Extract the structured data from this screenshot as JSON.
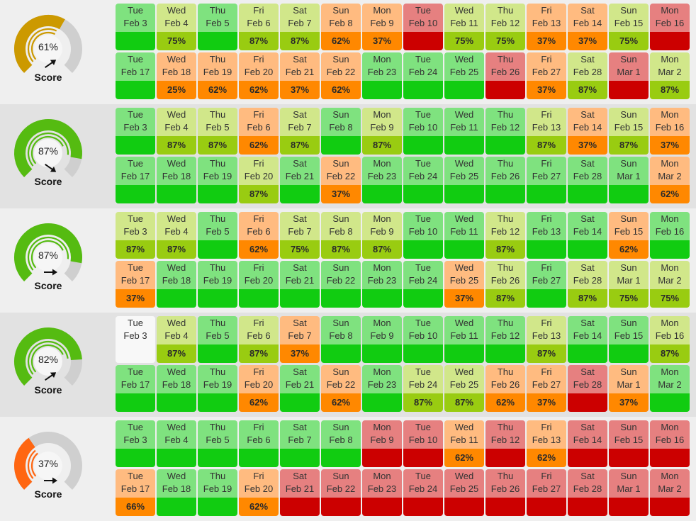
{
  "colors": {
    "green": {
      "top": "#7fe27f",
      "bot": "#11cc11"
    },
    "lime": {
      "top": "#d1e78a",
      "bot": "#99cc11"
    },
    "orange": {
      "top": "#ffbb80",
      "bot": "#ff8800"
    },
    "red": {
      "top": "#e68080",
      "bot": "#cc0000"
    },
    "white": {
      "top": "#f8f8f8",
      "bot": "#f8f8f8"
    },
    "gauge_track": "#cfcfcf",
    "gauge_gold": "#cc9900",
    "gauge_green": "#55bb11",
    "gauge_orange": "#ff6611"
  },
  "rows": [
    {
      "gauge": {
        "percent": "61%",
        "value": 61,
        "color": "gauge_gold",
        "arrow": "up-right-arrow-icon",
        "label": "Score"
      },
      "days": [
        {
          "dow": "Tue",
          "date": "Feb 3",
          "pct": "",
          "color": "green"
        },
        {
          "dow": "Wed",
          "date": "Feb 4",
          "pct": "75%",
          "color": "lime"
        },
        {
          "dow": "Thu",
          "date": "Feb 5",
          "pct": "",
          "color": "green"
        },
        {
          "dow": "Fri",
          "date": "Feb 6",
          "pct": "87%",
          "color": "lime"
        },
        {
          "dow": "Sat",
          "date": "Feb 7",
          "pct": "87%",
          "color": "lime"
        },
        {
          "dow": "Sun",
          "date": "Feb 8",
          "pct": "62%",
          "color": "orange"
        },
        {
          "dow": "Mon",
          "date": "Feb 9",
          "pct": "37%",
          "color": "orange"
        },
        {
          "dow": "Tue",
          "date": "Feb 10",
          "pct": "",
          "color": "red"
        },
        {
          "dow": "Wed",
          "date": "Feb 11",
          "pct": "75%",
          "color": "lime"
        },
        {
          "dow": "Thu",
          "date": "Feb 12",
          "pct": "75%",
          "color": "lime"
        },
        {
          "dow": "Fri",
          "date": "Feb 13",
          "pct": "37%",
          "color": "orange"
        },
        {
          "dow": "Sat",
          "date": "Feb 14",
          "pct": "37%",
          "color": "orange"
        },
        {
          "dow": "Sun",
          "date": "Feb 15",
          "pct": "75%",
          "color": "lime"
        },
        {
          "dow": "Mon",
          "date": "Feb 16",
          "pct": "",
          "color": "red"
        },
        {
          "dow": "Tue",
          "date": "Feb 17",
          "pct": "",
          "color": "green"
        },
        {
          "dow": "Wed",
          "date": "Feb 18",
          "pct": "25%",
          "color": "orange"
        },
        {
          "dow": "Thu",
          "date": "Feb 19",
          "pct": "62%",
          "color": "orange"
        },
        {
          "dow": "Fri",
          "date": "Feb 20",
          "pct": "62%",
          "color": "orange"
        },
        {
          "dow": "Sat",
          "date": "Feb 21",
          "pct": "37%",
          "color": "orange"
        },
        {
          "dow": "Sun",
          "date": "Feb 22",
          "pct": "62%",
          "color": "orange"
        },
        {
          "dow": "Mon",
          "date": "Feb 23",
          "pct": "",
          "color": "green"
        },
        {
          "dow": "Tue",
          "date": "Feb 24",
          "pct": "",
          "color": "green"
        },
        {
          "dow": "Wed",
          "date": "Feb 25",
          "pct": "",
          "color": "green"
        },
        {
          "dow": "Thu",
          "date": "Feb 26",
          "pct": "",
          "color": "red"
        },
        {
          "dow": "Fri",
          "date": "Feb 27",
          "pct": "37%",
          "color": "orange"
        },
        {
          "dow": "Sat",
          "date": "Feb 28",
          "pct": "87%",
          "color": "lime"
        },
        {
          "dow": "Sun",
          "date": "Mar 1",
          "pct": "",
          "color": "red"
        },
        {
          "dow": "Mon",
          "date": "Mar 2",
          "pct": "87%",
          "color": "lime"
        }
      ]
    },
    {
      "gauge": {
        "percent": "87%",
        "value": 87,
        "color": "gauge_green",
        "arrow": "down-right-arrow-icon",
        "label": "Score"
      },
      "days": [
        {
          "dow": "Tue",
          "date": "Feb 3",
          "pct": "",
          "color": "green"
        },
        {
          "dow": "Wed",
          "date": "Feb 4",
          "pct": "87%",
          "color": "lime"
        },
        {
          "dow": "Thu",
          "date": "Feb 5",
          "pct": "87%",
          "color": "lime"
        },
        {
          "dow": "Fri",
          "date": "Feb 6",
          "pct": "62%",
          "color": "orange"
        },
        {
          "dow": "Sat",
          "date": "Feb 7",
          "pct": "87%",
          "color": "lime"
        },
        {
          "dow": "Sun",
          "date": "Feb 8",
          "pct": "",
          "color": "green"
        },
        {
          "dow": "Mon",
          "date": "Feb 9",
          "pct": "87%",
          "color": "lime"
        },
        {
          "dow": "Tue",
          "date": "Feb 10",
          "pct": "",
          "color": "green"
        },
        {
          "dow": "Wed",
          "date": "Feb 11",
          "pct": "",
          "color": "green"
        },
        {
          "dow": "Thu",
          "date": "Feb 12",
          "pct": "",
          "color": "green"
        },
        {
          "dow": "Fri",
          "date": "Feb 13",
          "pct": "87%",
          "color": "lime"
        },
        {
          "dow": "Sat",
          "date": "Feb 14",
          "pct": "37%",
          "color": "orange"
        },
        {
          "dow": "Sun",
          "date": "Feb 15",
          "pct": "87%",
          "color": "lime"
        },
        {
          "dow": "Mon",
          "date": "Feb 16",
          "pct": "37%",
          "color": "orange"
        },
        {
          "dow": "Tue",
          "date": "Feb 17",
          "pct": "",
          "color": "green"
        },
        {
          "dow": "Wed",
          "date": "Feb 18",
          "pct": "",
          "color": "green"
        },
        {
          "dow": "Thu",
          "date": "Feb 19",
          "pct": "",
          "color": "green"
        },
        {
          "dow": "Fri",
          "date": "Feb 20",
          "pct": "87%",
          "color": "lime"
        },
        {
          "dow": "Sat",
          "date": "Feb 21",
          "pct": "",
          "color": "green"
        },
        {
          "dow": "Sun",
          "date": "Feb 22",
          "pct": "37%",
          "color": "orange"
        },
        {
          "dow": "Mon",
          "date": "Feb 23",
          "pct": "",
          "color": "green"
        },
        {
          "dow": "Tue",
          "date": "Feb 24",
          "pct": "",
          "color": "green"
        },
        {
          "dow": "Wed",
          "date": "Feb 25",
          "pct": "",
          "color": "green"
        },
        {
          "dow": "Thu",
          "date": "Feb 26",
          "pct": "",
          "color": "green"
        },
        {
          "dow": "Fri",
          "date": "Feb 27",
          "pct": "",
          "color": "green"
        },
        {
          "dow": "Sat",
          "date": "Feb 28",
          "pct": "",
          "color": "green"
        },
        {
          "dow": "Sun",
          "date": "Mar 1",
          "pct": "",
          "color": "green"
        },
        {
          "dow": "Mon",
          "date": "Mar 2",
          "pct": "62%",
          "color": "orange"
        }
      ]
    },
    {
      "gauge": {
        "percent": "87%",
        "value": 87,
        "color": "gauge_green",
        "arrow": "right-arrow-icon",
        "label": "Score"
      },
      "days": [
        {
          "dow": "Tue",
          "date": "Feb 3",
          "pct": "87%",
          "color": "lime"
        },
        {
          "dow": "Wed",
          "date": "Feb 4",
          "pct": "87%",
          "color": "lime"
        },
        {
          "dow": "Thu",
          "date": "Feb 5",
          "pct": "",
          "color": "green"
        },
        {
          "dow": "Fri",
          "date": "Feb 6",
          "pct": "62%",
          "color": "orange"
        },
        {
          "dow": "Sat",
          "date": "Feb 7",
          "pct": "75%",
          "color": "lime"
        },
        {
          "dow": "Sun",
          "date": "Feb 8",
          "pct": "87%",
          "color": "lime"
        },
        {
          "dow": "Mon",
          "date": "Feb 9",
          "pct": "87%",
          "color": "lime"
        },
        {
          "dow": "Tue",
          "date": "Feb 10",
          "pct": "",
          "color": "green"
        },
        {
          "dow": "Wed",
          "date": "Feb 11",
          "pct": "",
          "color": "green"
        },
        {
          "dow": "Thu",
          "date": "Feb 12",
          "pct": "87%",
          "color": "lime"
        },
        {
          "dow": "Fri",
          "date": "Feb 13",
          "pct": "",
          "color": "green"
        },
        {
          "dow": "Sat",
          "date": "Feb 14",
          "pct": "",
          "color": "green"
        },
        {
          "dow": "Sun",
          "date": "Feb 15",
          "pct": "62%",
          "color": "orange"
        },
        {
          "dow": "Mon",
          "date": "Feb 16",
          "pct": "",
          "color": "green"
        },
        {
          "dow": "Tue",
          "date": "Feb 17",
          "pct": "37%",
          "color": "orange"
        },
        {
          "dow": "Wed",
          "date": "Feb 18",
          "pct": "",
          "color": "green"
        },
        {
          "dow": "Thu",
          "date": "Feb 19",
          "pct": "",
          "color": "green"
        },
        {
          "dow": "Fri",
          "date": "Feb 20",
          "pct": "",
          "color": "green"
        },
        {
          "dow": "Sat",
          "date": "Feb 21",
          "pct": "",
          "color": "green"
        },
        {
          "dow": "Sun",
          "date": "Feb 22",
          "pct": "",
          "color": "green"
        },
        {
          "dow": "Mon",
          "date": "Feb 23",
          "pct": "",
          "color": "green"
        },
        {
          "dow": "Tue",
          "date": "Feb 24",
          "pct": "",
          "color": "green"
        },
        {
          "dow": "Wed",
          "date": "Feb 25",
          "pct": "37%",
          "color": "orange"
        },
        {
          "dow": "Thu",
          "date": "Feb 26",
          "pct": "87%",
          "color": "lime"
        },
        {
          "dow": "Fri",
          "date": "Feb 27",
          "pct": "",
          "color": "green"
        },
        {
          "dow": "Sat",
          "date": "Feb 28",
          "pct": "87%",
          "color": "lime"
        },
        {
          "dow": "Sun",
          "date": "Mar 1",
          "pct": "75%",
          "color": "lime"
        },
        {
          "dow": "Mon",
          "date": "Mar 2",
          "pct": "75%",
          "color": "lime"
        }
      ]
    },
    {
      "gauge": {
        "percent": "82%",
        "value": 82,
        "color": "gauge_green",
        "arrow": "up-right-arrow-icon",
        "label": "Score"
      },
      "days": [
        {
          "dow": "Tue",
          "date": "Feb 3",
          "pct": "",
          "color": "white"
        },
        {
          "dow": "Wed",
          "date": "Feb 4",
          "pct": "87%",
          "color": "lime"
        },
        {
          "dow": "Thu",
          "date": "Feb 5",
          "pct": "",
          "color": "green"
        },
        {
          "dow": "Fri",
          "date": "Feb 6",
          "pct": "87%",
          "color": "lime"
        },
        {
          "dow": "Sat",
          "date": "Feb 7",
          "pct": "37%",
          "color": "orange"
        },
        {
          "dow": "Sun",
          "date": "Feb 8",
          "pct": "",
          "color": "green"
        },
        {
          "dow": "Mon",
          "date": "Feb 9",
          "pct": "",
          "color": "green"
        },
        {
          "dow": "Tue",
          "date": "Feb 10",
          "pct": "",
          "color": "green"
        },
        {
          "dow": "Wed",
          "date": "Feb 11",
          "pct": "",
          "color": "green"
        },
        {
          "dow": "Thu",
          "date": "Feb 12",
          "pct": "",
          "color": "green"
        },
        {
          "dow": "Fri",
          "date": "Feb 13",
          "pct": "87%",
          "color": "lime"
        },
        {
          "dow": "Sat",
          "date": "Feb 14",
          "pct": "",
          "color": "green"
        },
        {
          "dow": "Sun",
          "date": "Feb 15",
          "pct": "",
          "color": "green"
        },
        {
          "dow": "Mon",
          "date": "Feb 16",
          "pct": "87%",
          "color": "lime"
        },
        {
          "dow": "Tue",
          "date": "Feb 17",
          "pct": "",
          "color": "green"
        },
        {
          "dow": "Wed",
          "date": "Feb 18",
          "pct": "",
          "color": "green"
        },
        {
          "dow": "Thu",
          "date": "Feb 19",
          "pct": "",
          "color": "green"
        },
        {
          "dow": "Fri",
          "date": "Feb 20",
          "pct": "62%",
          "color": "orange"
        },
        {
          "dow": "Sat",
          "date": "Feb 21",
          "pct": "",
          "color": "green"
        },
        {
          "dow": "Sun",
          "date": "Feb 22",
          "pct": "62%",
          "color": "orange"
        },
        {
          "dow": "Mon",
          "date": "Feb 23",
          "pct": "",
          "color": "green"
        },
        {
          "dow": "Tue",
          "date": "Feb 24",
          "pct": "87%",
          "color": "lime"
        },
        {
          "dow": "Wed",
          "date": "Feb 25",
          "pct": "87%",
          "color": "lime"
        },
        {
          "dow": "Thu",
          "date": "Feb 26",
          "pct": "62%",
          "color": "orange"
        },
        {
          "dow": "Fri",
          "date": "Feb 27",
          "pct": "37%",
          "color": "orange"
        },
        {
          "dow": "Sat",
          "date": "Feb 28",
          "pct": "",
          "color": "red"
        },
        {
          "dow": "Sun",
          "date": "Mar 1",
          "pct": "37%",
          "color": "orange"
        },
        {
          "dow": "Mon",
          "date": "Mar 2",
          "pct": "",
          "color": "green"
        }
      ]
    },
    {
      "gauge": {
        "percent": "37%",
        "value": 37,
        "color": "gauge_orange",
        "arrow": "right-arrow-icon",
        "label": "Score"
      },
      "days": [
        {
          "dow": "Tue",
          "date": "Feb 3",
          "pct": "",
          "color": "green"
        },
        {
          "dow": "Wed",
          "date": "Feb 4",
          "pct": "",
          "color": "green"
        },
        {
          "dow": "Thu",
          "date": "Feb 5",
          "pct": "",
          "color": "green"
        },
        {
          "dow": "Fri",
          "date": "Feb 6",
          "pct": "",
          "color": "green"
        },
        {
          "dow": "Sat",
          "date": "Feb 7",
          "pct": "",
          "color": "green"
        },
        {
          "dow": "Sun",
          "date": "Feb 8",
          "pct": "",
          "color": "green"
        },
        {
          "dow": "Mon",
          "date": "Feb 9",
          "pct": "",
          "color": "red"
        },
        {
          "dow": "Tue",
          "date": "Feb 10",
          "pct": "",
          "color": "red"
        },
        {
          "dow": "Wed",
          "date": "Feb 11",
          "pct": "62%",
          "color": "orange"
        },
        {
          "dow": "Thu",
          "date": "Feb 12",
          "pct": "",
          "color": "red"
        },
        {
          "dow": "Fri",
          "date": "Feb 13",
          "pct": "62%",
          "color": "orange"
        },
        {
          "dow": "Sat",
          "date": "Feb 14",
          "pct": "",
          "color": "red"
        },
        {
          "dow": "Sun",
          "date": "Feb 15",
          "pct": "",
          "color": "red"
        },
        {
          "dow": "Mon",
          "date": "Feb 16",
          "pct": "",
          "color": "red"
        },
        {
          "dow": "Tue",
          "date": "Feb 17",
          "pct": "66%",
          "color": "orange"
        },
        {
          "dow": "Wed",
          "date": "Feb 18",
          "pct": "",
          "color": "green"
        },
        {
          "dow": "Thu",
          "date": "Feb 19",
          "pct": "",
          "color": "green"
        },
        {
          "dow": "Fri",
          "date": "Feb 20",
          "pct": "62%",
          "color": "orange"
        },
        {
          "dow": "Sat",
          "date": "Feb 21",
          "pct": "",
          "color": "red"
        },
        {
          "dow": "Sun",
          "date": "Feb 22",
          "pct": "",
          "color": "red"
        },
        {
          "dow": "Mon",
          "date": "Feb 23",
          "pct": "",
          "color": "red"
        },
        {
          "dow": "Tue",
          "date": "Feb 24",
          "pct": "",
          "color": "red"
        },
        {
          "dow": "Wed",
          "date": "Feb 25",
          "pct": "",
          "color": "red"
        },
        {
          "dow": "Thu",
          "date": "Feb 26",
          "pct": "",
          "color": "red"
        },
        {
          "dow": "Fri",
          "date": "Feb 27",
          "pct": "",
          "color": "red"
        },
        {
          "dow": "Sat",
          "date": "Feb 28",
          "pct": "",
          "color": "red"
        },
        {
          "dow": "Sun",
          "date": "Mar 1",
          "pct": "",
          "color": "red"
        },
        {
          "dow": "Mon",
          "date": "Mar 2",
          "pct": "",
          "color": "red"
        }
      ]
    }
  ]
}
